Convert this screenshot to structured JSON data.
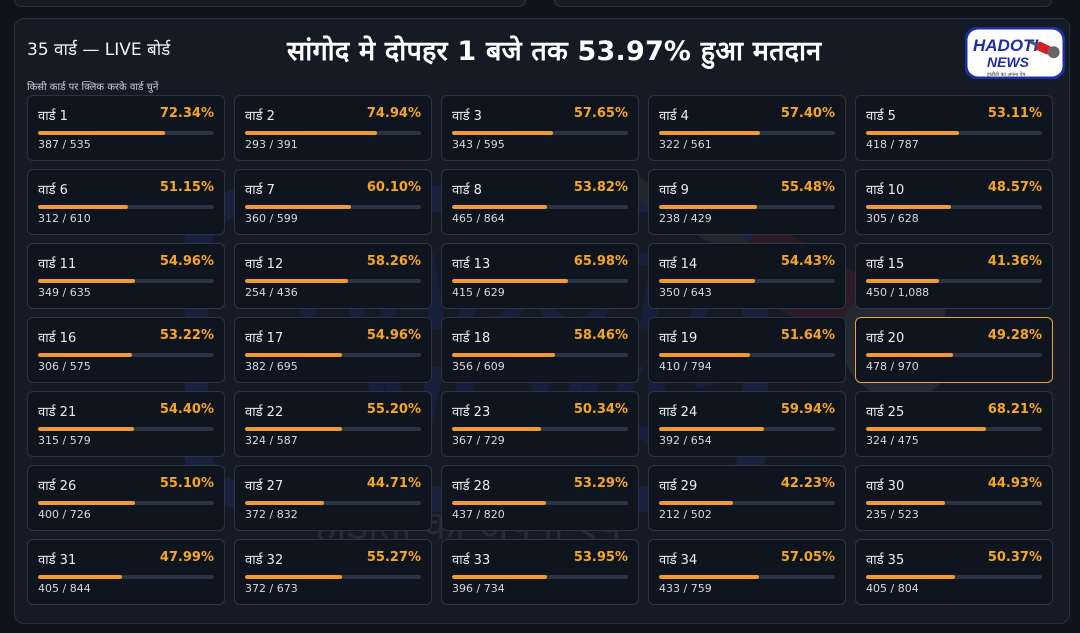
{
  "header": {
    "board_title": "35 वार्ड — LIVE बोर्ड",
    "headline": "सांगोद मे दोपहर 1 बजे तक 53.97% हुआ मतदान",
    "hint": "किसी कार्ड पर क्लिक करके वार्ड चुनें"
  },
  "logo": {
    "line1": "HADOTI",
    "line2": "NEWS",
    "tagline": "हाड़ौती का अपना ऐप",
    "icon": "microphone-icon"
  },
  "watermark": {
    "line1": "HADOTI",
    "line2": "NEWS",
    "tagline": "हाड़ौती का अपना ऐप"
  },
  "colors": {
    "accent": "#f6a623",
    "bar_fill": "#f29a2e",
    "selected_border": "#f0a030",
    "logo_blue": "#1b2fa8",
    "logo_red": "#d71f26"
  },
  "selected_ward": 20,
  "wards": [
    {
      "name": "वार्ड 1",
      "pct": "72.34%",
      "count": "387 / 535",
      "fill": 0.7234
    },
    {
      "name": "वार्ड 2",
      "pct": "74.94%",
      "count": "293 / 391",
      "fill": 0.7494
    },
    {
      "name": "वार्ड 3",
      "pct": "57.65%",
      "count": "343 / 595",
      "fill": 0.5765
    },
    {
      "name": "वार्ड 4",
      "pct": "57.40%",
      "count": "322 / 561",
      "fill": 0.574
    },
    {
      "name": "वार्ड 5",
      "pct": "53.11%",
      "count": "418 / 787",
      "fill": 0.5311
    },
    {
      "name": "वार्ड 6",
      "pct": "51.15%",
      "count": "312 / 610",
      "fill": 0.5115
    },
    {
      "name": "वार्ड 7",
      "pct": "60.10%",
      "count": "360 / 599",
      "fill": 0.601
    },
    {
      "name": "वार्ड 8",
      "pct": "53.82%",
      "count": "465 / 864",
      "fill": 0.5382
    },
    {
      "name": "वार्ड 9",
      "pct": "55.48%",
      "count": "238 / 429",
      "fill": 0.5548
    },
    {
      "name": "वार्ड 10",
      "pct": "48.57%",
      "count": "305 / 628",
      "fill": 0.4857
    },
    {
      "name": "वार्ड 11",
      "pct": "54.96%",
      "count": "349 / 635",
      "fill": 0.5496
    },
    {
      "name": "वार्ड 12",
      "pct": "58.26%",
      "count": "254 / 436",
      "fill": 0.5826
    },
    {
      "name": "वार्ड 13",
      "pct": "65.98%",
      "count": "415 / 629",
      "fill": 0.6598
    },
    {
      "name": "वार्ड 14",
      "pct": "54.43%",
      "count": "350 / 643",
      "fill": 0.5443
    },
    {
      "name": "वार्ड 15",
      "pct": "41.36%",
      "count": "450 / 1,088",
      "fill": 0.4136
    },
    {
      "name": "वार्ड 16",
      "pct": "53.22%",
      "count": "306 / 575",
      "fill": 0.5322
    },
    {
      "name": "वार्ड 17",
      "pct": "54.96%",
      "count": "382 / 695",
      "fill": 0.5496
    },
    {
      "name": "वार्ड 18",
      "pct": "58.46%",
      "count": "356 / 609",
      "fill": 0.5846
    },
    {
      "name": "वार्ड 19",
      "pct": "51.64%",
      "count": "410 / 794",
      "fill": 0.5164
    },
    {
      "name": "वार्ड 20",
      "pct": "49.28%",
      "count": "478 / 970",
      "fill": 0.4928
    },
    {
      "name": "वार्ड 21",
      "pct": "54.40%",
      "count": "315 / 579",
      "fill": 0.544
    },
    {
      "name": "वार्ड 22",
      "pct": "55.20%",
      "count": "324 / 587",
      "fill": 0.552
    },
    {
      "name": "वार्ड 23",
      "pct": "50.34%",
      "count": "367 / 729",
      "fill": 0.5034
    },
    {
      "name": "वार्ड 24",
      "pct": "59.94%",
      "count": "392 / 654",
      "fill": 0.5994
    },
    {
      "name": "वार्ड 25",
      "pct": "68.21%",
      "count": "324 / 475",
      "fill": 0.6821
    },
    {
      "name": "वार्ड 26",
      "pct": "55.10%",
      "count": "400 / 726",
      "fill": 0.551
    },
    {
      "name": "वार्ड 27",
      "pct": "44.71%",
      "count": "372 / 832",
      "fill": 0.4471
    },
    {
      "name": "वार्ड 28",
      "pct": "53.29%",
      "count": "437 / 820",
      "fill": 0.5329
    },
    {
      "name": "वार्ड 29",
      "pct": "42.23%",
      "count": "212 / 502",
      "fill": 0.4223
    },
    {
      "name": "वार्ड 30",
      "pct": "44.93%",
      "count": "235 / 523",
      "fill": 0.4493
    },
    {
      "name": "वार्ड 31",
      "pct": "47.99%",
      "count": "405 / 844",
      "fill": 0.4799
    },
    {
      "name": "वार्ड 32",
      "pct": "55.27%",
      "count": "372 / 673",
      "fill": 0.5527
    },
    {
      "name": "वार्ड 33",
      "pct": "53.95%",
      "count": "396 / 734",
      "fill": 0.5395
    },
    {
      "name": "वार्ड 34",
      "pct": "57.05%",
      "count": "433 / 759",
      "fill": 0.5705
    },
    {
      "name": "वार्ड 35",
      "pct": "50.37%",
      "count": "405 / 804",
      "fill": 0.5037
    }
  ]
}
